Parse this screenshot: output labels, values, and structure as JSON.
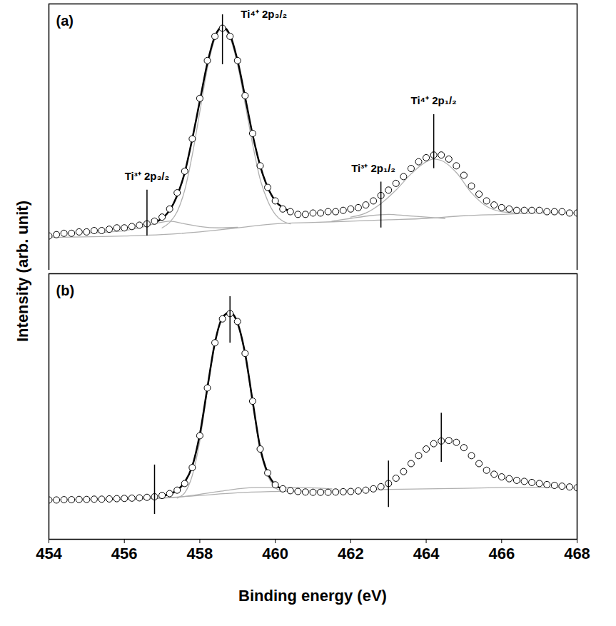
{
  "chart_data": [
    {
      "type": "line",
      "panel_label": "(a)",
      "ylabel": "Intensity (arb. unit)",
      "xlim": [
        454,
        468
      ],
      "ylim": [
        0,
        100
      ],
      "tick_labels": false,
      "grid": false,
      "series": [
        {
          "type": "line",
          "color": "#b0b0b0",
          "line_style": "solid",
          "x": [
            454,
            456,
            457,
            458,
            459,
            460,
            461,
            462,
            463,
            464,
            465,
            466,
            467,
            468
          ],
          "values": [
            13.5,
            14,
            14.5,
            15.5,
            17,
            18.5,
            19,
            19.5,
            20,
            20.5,
            21.5,
            22,
            22.5,
            22.5
          ]
        },
        {
          "type": "line",
          "color": "#b0b0b0",
          "line_style": "solid",
          "x": [
            455,
            455.6,
            456,
            456.4,
            456.8,
            457.2,
            457.6,
            458,
            458.5,
            459
          ],
          "values": [
            15,
            15.5,
            16,
            17,
            18.5,
            19.5,
            18.5,
            17.5,
            17,
            17.2
          ]
        },
        {
          "type": "line",
          "color": "#b0b0b0",
          "line_style": "solid",
          "x": [
            461.5,
            462,
            462.5,
            463,
            463.5,
            464,
            464.5
          ],
          "values": [
            19.5,
            20.5,
            21.5,
            22,
            21.5,
            21,
            20.5
          ]
        },
        {
          "type": "line",
          "color": "#b0b0b0",
          "line_style": "solid",
          "x": [
            457,
            457.2,
            457.4,
            457.6,
            457.8,
            458,
            458.2,
            458.4,
            458.6,
            458.8,
            459,
            459.2,
            459.4,
            459.6,
            459.8,
            460,
            460.2,
            460.4
          ],
          "values": [
            17,
            19,
            23,
            31,
            44,
            60,
            76,
            87,
            91,
            87.5,
            77.5,
            63,
            48,
            35,
            27,
            22,
            19.5,
            18.5
          ]
        },
        {
          "type": "line",
          "color": "#b0b0b0",
          "line_style": "solid",
          "x": [
            462,
            462.4,
            462.8,
            463.2,
            463.6,
            464,
            464.2,
            464.4,
            464.8,
            465.2,
            465.6,
            466,
            466.4
          ],
          "values": [
            21,
            22.5,
            26,
            31,
            37,
            41.5,
            42.5,
            42,
            37.5,
            30,
            25,
            23,
            22.5
          ]
        },
        {
          "type": "line",
          "color": "#000000",
          "line_style": "solid",
          "x": [
            456.8,
            457,
            457.2,
            457.4,
            457.6,
            457.8,
            458,
            458.2,
            458.4,
            458.6,
            458.8,
            459,
            459.2,
            459.4,
            459.6,
            459.8,
            460,
            460.2,
            460.4
          ],
          "values": [
            19,
            20.5,
            23.5,
            29,
            37.5,
            50,
            64,
            78,
            88,
            91.5,
            88.5,
            79,
            65.5,
            51.5,
            40,
            32,
            27,
            24.5,
            23
          ]
        },
        {
          "type": "scatter",
          "color": "#000000",
          "marker": "circle",
          "x": [
            454,
            454.2,
            454.4,
            454.6,
            454.8,
            455,
            455.2,
            455.4,
            455.6,
            455.8,
            456,
            456.2,
            456.4,
            456.6,
            456.8,
            457,
            457.2,
            457.4,
            457.6,
            457.8,
            458,
            458.2,
            458.4,
            458.6,
            458.8,
            459,
            459.2,
            459.4,
            459.6,
            459.8,
            460,
            460.2,
            460.4,
            460.6,
            460.8,
            461,
            461.2,
            461.4,
            461.6,
            461.8,
            462,
            462.2,
            462.4,
            462.6,
            462.8,
            463,
            463.2,
            463.4,
            463.6,
            463.8,
            464,
            464.2,
            464.4,
            464.6,
            464.8,
            465,
            465.2,
            465.4,
            465.6,
            465.8,
            466,
            466.2,
            466.4,
            466.6,
            466.8,
            467,
            467.2,
            467.4,
            467.6,
            467.8,
            468
          ],
          "values": [
            14,
            14.5,
            15,
            15,
            15.5,
            15.5,
            16,
            16,
            16.5,
            17,
            17,
            17.5,
            18,
            18.5,
            19.5,
            21,
            24,
            30,
            38,
            50,
            65,
            79,
            88,
            91,
            88,
            79,
            66,
            52,
            40,
            32,
            27,
            24,
            23,
            22,
            22,
            22.5,
            22.5,
            23,
            23,
            23.5,
            24,
            24.5,
            25.5,
            27,
            29,
            31,
            33.5,
            36,
            39,
            41.5,
            43,
            44,
            44,
            42.5,
            40,
            36.5,
            32.5,
            29.5,
            27,
            25.5,
            24.5,
            24,
            23.5,
            23.5,
            23.5,
            23.5,
            23,
            23,
            23,
            22.5,
            22.5
          ]
        }
      ],
      "annotations": [
        {
          "text": "Ti³⁺ 2p₃/₂",
          "text_x": 456.6,
          "text_y": 36,
          "x": 456.6,
          "y1": 14,
          "y2": 31
        },
        {
          "text": "Ti⁴⁺ 2p₃/₂",
          "text_x": 459.7,
          "text_y": 96,
          "x": 458.6,
          "y1": 77.5,
          "y2": 96
        },
        {
          "text": "Ti³⁺ 2p₁/₂",
          "text_x": 462.6,
          "text_y": 39,
          "x": 462.8,
          "y1": 17,
          "y2": 34
        },
        {
          "text": "Ti⁴⁺ 2p₁/₂",
          "text_x": 464.2,
          "text_y": 64,
          "x": 464.2,
          "y1": 39,
          "y2": 59
        }
      ]
    },
    {
      "type": "line",
      "panel_label": "(b)",
      "xlabel": "Binding energy (eV)",
      "xlim": [
        454,
        468
      ],
      "xticks": [
        454,
        456,
        458,
        460,
        462,
        464,
        466,
        468
      ],
      "ylim": [
        0,
        100
      ],
      "tick_labels": "x",
      "grid": false,
      "series": [
        {
          "type": "line",
          "color": "#b0b0b0",
          "line_style": "solid",
          "x": [
            454,
            456,
            457,
            458,
            459,
            460,
            461,
            462,
            463,
            464,
            465,
            466,
            467,
            468
          ],
          "values": [
            14.8,
            15,
            15.5,
            16.5,
            17.5,
            18,
            18.3,
            18.5,
            18.8,
            19,
            19.2,
            19.5,
            19.6,
            19.4
          ]
        },
        {
          "type": "line",
          "color": "#b0b0b0",
          "line_style": "solid",
          "x": [
            456.5,
            457.5,
            458.5,
            459.5,
            460.5,
            461.5
          ],
          "values": [
            15.2,
            16,
            18,
            19.5,
            19.5,
            19
          ]
        },
        {
          "type": "line",
          "color": "#b0b0b0",
          "line_style": "solid",
          "x": [
            457.4,
            457.6,
            457.8,
            458,
            458.2,
            458.4,
            458.6,
            458.8,
            459,
            459.2,
            459.4,
            459.6,
            459.8,
            460,
            460.2
          ],
          "values": [
            15.5,
            17.5,
            24,
            37,
            56,
            73.5,
            83,
            85,
            81,
            69,
            51,
            33.5,
            24,
            19.5,
            18
          ]
        },
        {
          "type": "line",
          "color": "#000000",
          "line_style": "solid",
          "x": [
            457,
            457.2,
            457.4,
            457.6,
            457.8,
            458,
            458.2,
            458.4,
            458.6,
            458.8,
            459,
            459.2,
            459.4,
            459.6,
            459.8,
            460,
            460.2
          ],
          "values": [
            16.3,
            17,
            18.5,
            21.5,
            27.5,
            39.5,
            57,
            74,
            83.5,
            85.5,
            81.5,
            70,
            52,
            34.5,
            25,
            20.5,
            19
          ]
        },
        {
          "type": "scatter",
          "color": "#000000",
          "marker": "circle",
          "x": [
            454,
            454.2,
            454.4,
            454.6,
            454.8,
            455,
            455.2,
            455.4,
            455.6,
            455.8,
            456,
            456.2,
            456.4,
            456.6,
            456.8,
            457,
            457.2,
            457.4,
            457.6,
            457.8,
            458,
            458.2,
            458.4,
            458.6,
            458.8,
            459,
            459.2,
            459.4,
            459.6,
            459.8,
            460,
            460.2,
            460.4,
            460.6,
            460.8,
            461,
            461.2,
            461.4,
            461.6,
            461.8,
            462,
            462.2,
            462.4,
            462.6,
            462.8,
            463,
            463.2,
            463.4,
            463.6,
            463.8,
            464,
            464.2,
            464.4,
            464.6,
            464.8,
            465,
            465.2,
            465.4,
            465.6,
            465.8,
            466,
            466.2,
            466.4,
            466.6,
            466.8,
            467,
            467.2,
            467.4,
            467.6,
            467.8,
            468
          ],
          "values": [
            14.8,
            14.8,
            14.9,
            14.9,
            15,
            15,
            15.1,
            15.1,
            15.2,
            15.3,
            15.4,
            15.5,
            15.6,
            15.8,
            16,
            16.5,
            17.2,
            18.5,
            21,
            27,
            39,
            57,
            74,
            83,
            85,
            82,
            70,
            52,
            34,
            25,
            20.5,
            19,
            18.3,
            18,
            17.8,
            17.7,
            17.7,
            17.7,
            17.8,
            17.9,
            18,
            18.2,
            18.5,
            19,
            19.8,
            21,
            23,
            25.5,
            28.5,
            31.5,
            34,
            36,
            37,
            37.2,
            36.5,
            34.5,
            31.5,
            28.5,
            26,
            24.5,
            23.5,
            22.8,
            22.2,
            21.8,
            21.4,
            21,
            20.6,
            20.3,
            20,
            19.7,
            19.4
          ]
        }
      ],
      "annotations": [
        {
          "x": 456.8,
          "y1": 9.4,
          "y2": 28
        },
        {
          "x": 458.8,
          "y1": 73.9,
          "y2": 91.4
        },
        {
          "x": 463.0,
          "y1": 12,
          "y2": 29.5
        },
        {
          "x": 464.4,
          "y1": 29,
          "y2": 47.5
        }
      ]
    }
  ]
}
